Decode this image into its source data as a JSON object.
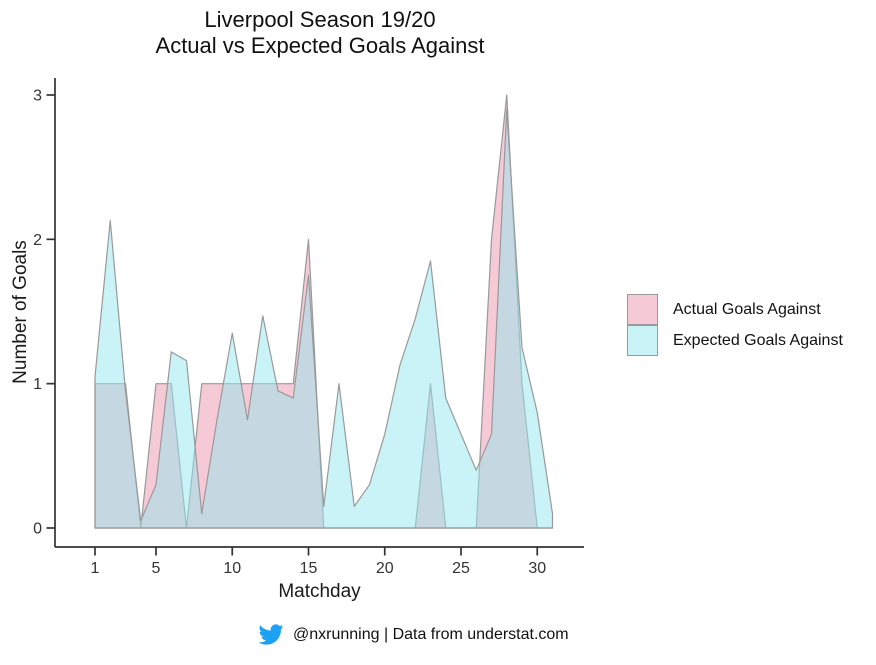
{
  "title": {
    "line1": "Liverpool Season 19/20",
    "line2": "Actual vs Expected Goals Against"
  },
  "axes": {
    "x_label": "Matchday",
    "y_label": "Number of Goals",
    "x_ticks": [
      1,
      5,
      10,
      15,
      20,
      25,
      30
    ],
    "y_ticks": [
      0,
      1,
      2,
      3
    ]
  },
  "footer": {
    "icon": "twitter-icon",
    "text": "@nxrunning | Data from understat.com"
  },
  "chart_data": {
    "type": "area",
    "title": "Liverpool Season 19/20 — Actual vs Expected Goals Against",
    "xlabel": "Matchday",
    "ylabel": "Number of Goals",
    "x": [
      1,
      2,
      3,
      4,
      5,
      6,
      7,
      8,
      9,
      10,
      11,
      12,
      13,
      14,
      15,
      16,
      17,
      18,
      19,
      20,
      21,
      22,
      23,
      24,
      25,
      26,
      27,
      28,
      29,
      30,
      31
    ],
    "series": [
      {
        "name": "Actual Goals Against",
        "color": "#ED93AD",
        "values": [
          1,
          1,
          1,
          0,
          1,
          1,
          0,
          1,
          1,
          1,
          1,
          1,
          1,
          1,
          2,
          0,
          0,
          0,
          0,
          0,
          0,
          0,
          1,
          0,
          0,
          0,
          2,
          3,
          1,
          0,
          0
        ]
      },
      {
        "name": "Expected Goals Against",
        "color": "#93E7ED",
        "values": [
          1.05,
          2.13,
          0.95,
          0.05,
          0.3,
          1.22,
          1.16,
          0.1,
          0.75,
          1.35,
          0.75,
          1.47,
          0.95,
          0.9,
          1.75,
          0.15,
          1.0,
          0.15,
          0.3,
          0.65,
          1.13,
          1.45,
          1.85,
          0.9,
          0.65,
          0.4,
          0.65,
          2.9,
          1.25,
          0.8,
          0.1
        ]
      }
    ],
    "xlim": [
      0.5,
      33
    ],
    "ylim": [
      0,
      3.1
    ],
    "grid": false,
    "legend_position": "right",
    "fill_opacity": 0.5,
    "stroke": "#999999",
    "accent_colors": {
      "twitter_blue": "#1DA1F2",
      "axis": "#333333"
    }
  }
}
